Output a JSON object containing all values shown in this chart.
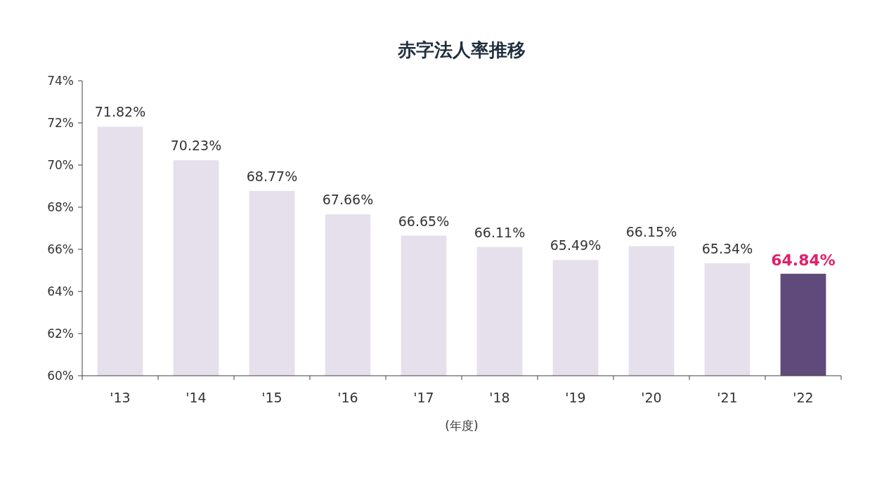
{
  "chart_data": {
    "type": "bar",
    "title": "赤字法人率推移",
    "xlabel": "(年度)",
    "categories": [
      "'13",
      "'14",
      "'15",
      "'16",
      "'17",
      "'18",
      "'19",
      "'20",
      "'21",
      "'22"
    ],
    "values": [
      71.82,
      70.23,
      68.77,
      67.66,
      66.65,
      66.11,
      65.49,
      66.15,
      65.34,
      64.84
    ],
    "value_labels": [
      "71.82%",
      "70.23%",
      "68.77%",
      "67.66%",
      "66.65%",
      "66.11%",
      "65.49%",
      "66.15%",
      "65.34%",
      "64.84%"
    ],
    "colors": [
      "#e6e0ec",
      "#e6e0ec",
      "#e6e0ec",
      "#e6e0ec",
      "#e6e0ec",
      "#e6e0ec",
      "#e6e0ec",
      "#e6e0ec",
      "#e6e0ec",
      "#604a7b"
    ],
    "ylim": [
      60,
      74
    ],
    "yticks": [
      {
        "value": 60,
        "label": "60%"
      },
      {
        "value": 62,
        "label": "62%"
      },
      {
        "value": 64,
        "label": "64%"
      },
      {
        "value": 66,
        "label": "66%"
      },
      {
        "value": 68,
        "label": "68%"
      },
      {
        "value": 70,
        "label": "70%"
      },
      {
        "value": 72,
        "label": "72%"
      },
      {
        "value": 74,
        "label": "74%"
      }
    ]
  }
}
